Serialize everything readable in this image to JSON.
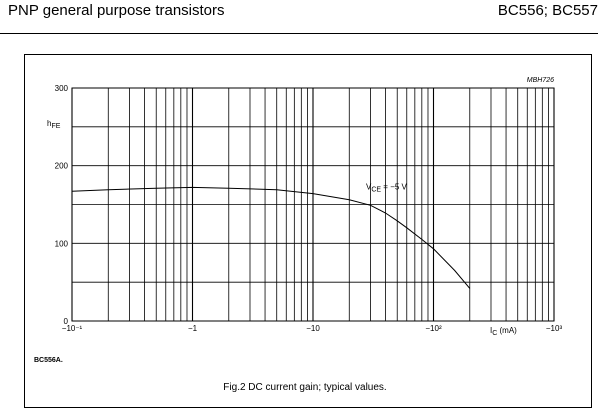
{
  "header": {
    "title": "PNP general purpose transistors",
    "part_numbers": "BC556; BC557"
  },
  "figure": {
    "code": "MBH726",
    "variant": "BC556A.",
    "caption": "Fig.2  DC current gain; typical values."
  },
  "chart_data": {
    "type": "line",
    "title": "",
    "xlabel": "IC (mA)",
    "ylabel": "hFE",
    "x_scale": "log",
    "xlim": [
      -0.1,
      -1000
    ],
    "ylim": [
      0,
      300
    ],
    "x_ticks": [
      "−10⁻¹",
      "−1",
      "−10",
      "−10²",
      "−10³"
    ],
    "y_ticks": [
      "0",
      "100",
      "200",
      "300"
    ],
    "grid": true,
    "series": [
      {
        "name": "",
        "label": "VCE = −5 V",
        "x": [
          -0.1,
          -0.2,
          -0.5,
          -1,
          -2,
          -5,
          -10,
          -20,
          -30,
          -40,
          -50,
          -60,
          -80,
          -100,
          -150,
          -200
        ],
        "y": [
          167,
          169,
          171,
          172,
          171,
          169,
          164,
          156,
          149,
          139,
          129,
          120,
          105,
          93,
          65,
          42
        ]
      }
    ]
  }
}
